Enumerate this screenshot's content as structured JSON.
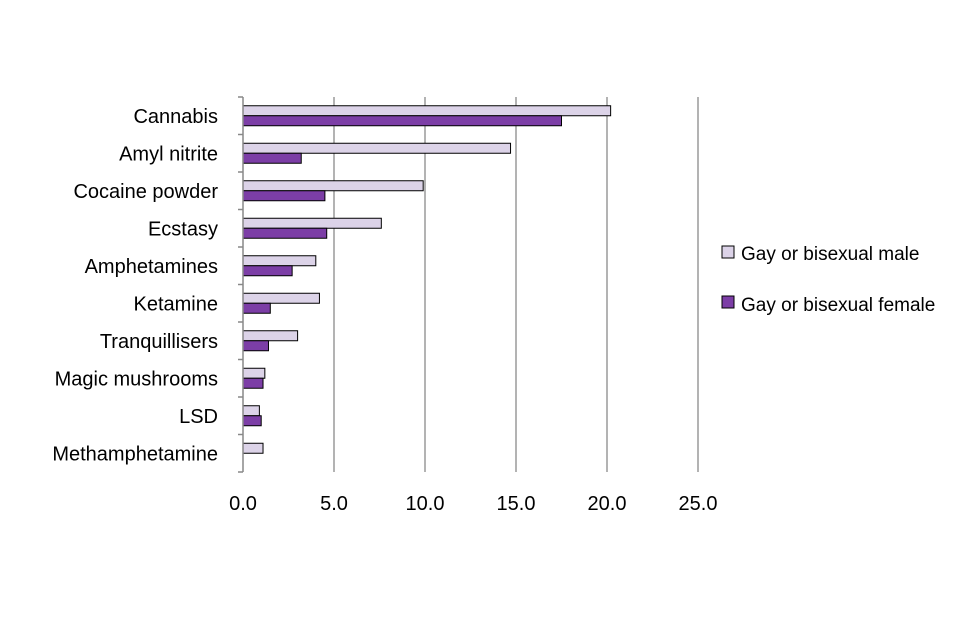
{
  "chart_data": {
    "type": "bar",
    "orientation": "horizontal",
    "title": "",
    "xlabel": "",
    "ylabel": "",
    "categories": [
      "Cannabis",
      "Amyl nitrite",
      "Cocaine powder",
      "Ecstasy",
      "Amphetamines",
      "Ketamine",
      "Tranquillisers",
      "Magic mushrooms",
      "LSD",
      "Methamphetamine"
    ],
    "series": [
      {
        "name": "Gay or bisexual male",
        "color": "#dcd3e8",
        "values": [
          20.2,
          14.7,
          9.9,
          7.6,
          4.0,
          4.2,
          3.0,
          1.2,
          0.9,
          1.1
        ]
      },
      {
        "name": "Gay or bisexual female",
        "color": "#7c3ea6",
        "values": [
          17.5,
          3.2,
          4.5,
          4.6,
          2.7,
          1.5,
          1.4,
          1.1,
          1.0,
          null
        ]
      }
    ],
    "xlim": [
      0,
      25
    ],
    "xticks": [
      "0.0",
      "5.0",
      "10.0",
      "15.0",
      "20.0",
      "25.0"
    ],
    "xtick_values": [
      0,
      5,
      10,
      15,
      20,
      25
    ],
    "grid": true,
    "legend_position": "right"
  }
}
